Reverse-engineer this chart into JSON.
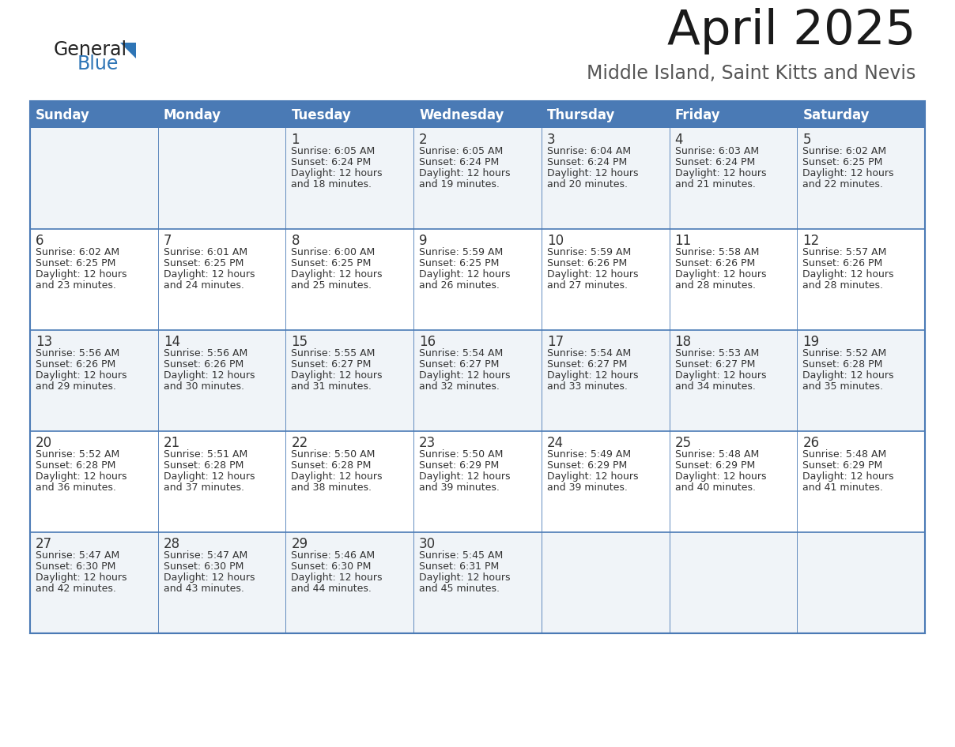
{
  "title": "April 2025",
  "subtitle": "Middle Island, Saint Kitts and Nevis",
  "header_bg_color": "#4a7ab5",
  "header_text_color": "#ffffff",
  "cell_bg_light": "#f0f4f8",
  "cell_bg_white": "#ffffff",
  "border_color": "#4a7ab5",
  "text_color": "#333333",
  "days_of_week": [
    "Sunday",
    "Monday",
    "Tuesday",
    "Wednesday",
    "Thursday",
    "Friday",
    "Saturday"
  ],
  "weeks": [
    [
      {
        "day": "",
        "sunrise": "",
        "sunset": "",
        "daylight": ""
      },
      {
        "day": "",
        "sunrise": "",
        "sunset": "",
        "daylight": ""
      },
      {
        "day": "1",
        "sunrise": "Sunrise: 6:05 AM",
        "sunset": "Sunset: 6:24 PM",
        "daylight": "Daylight: 12 hours\nand 18 minutes."
      },
      {
        "day": "2",
        "sunrise": "Sunrise: 6:05 AM",
        "sunset": "Sunset: 6:24 PM",
        "daylight": "Daylight: 12 hours\nand 19 minutes."
      },
      {
        "day": "3",
        "sunrise": "Sunrise: 6:04 AM",
        "sunset": "Sunset: 6:24 PM",
        "daylight": "Daylight: 12 hours\nand 20 minutes."
      },
      {
        "day": "4",
        "sunrise": "Sunrise: 6:03 AM",
        "sunset": "Sunset: 6:24 PM",
        "daylight": "Daylight: 12 hours\nand 21 minutes."
      },
      {
        "day": "5",
        "sunrise": "Sunrise: 6:02 AM",
        "sunset": "Sunset: 6:25 PM",
        "daylight": "Daylight: 12 hours\nand 22 minutes."
      }
    ],
    [
      {
        "day": "6",
        "sunrise": "Sunrise: 6:02 AM",
        "sunset": "Sunset: 6:25 PM",
        "daylight": "Daylight: 12 hours\nand 23 minutes."
      },
      {
        "day": "7",
        "sunrise": "Sunrise: 6:01 AM",
        "sunset": "Sunset: 6:25 PM",
        "daylight": "Daylight: 12 hours\nand 24 minutes."
      },
      {
        "day": "8",
        "sunrise": "Sunrise: 6:00 AM",
        "sunset": "Sunset: 6:25 PM",
        "daylight": "Daylight: 12 hours\nand 25 minutes."
      },
      {
        "day": "9",
        "sunrise": "Sunrise: 5:59 AM",
        "sunset": "Sunset: 6:25 PM",
        "daylight": "Daylight: 12 hours\nand 26 minutes."
      },
      {
        "day": "10",
        "sunrise": "Sunrise: 5:59 AM",
        "sunset": "Sunset: 6:26 PM",
        "daylight": "Daylight: 12 hours\nand 27 minutes."
      },
      {
        "day": "11",
        "sunrise": "Sunrise: 5:58 AM",
        "sunset": "Sunset: 6:26 PM",
        "daylight": "Daylight: 12 hours\nand 28 minutes."
      },
      {
        "day": "12",
        "sunrise": "Sunrise: 5:57 AM",
        "sunset": "Sunset: 6:26 PM",
        "daylight": "Daylight: 12 hours\nand 28 minutes."
      }
    ],
    [
      {
        "day": "13",
        "sunrise": "Sunrise: 5:56 AM",
        "sunset": "Sunset: 6:26 PM",
        "daylight": "Daylight: 12 hours\nand 29 minutes."
      },
      {
        "day": "14",
        "sunrise": "Sunrise: 5:56 AM",
        "sunset": "Sunset: 6:26 PM",
        "daylight": "Daylight: 12 hours\nand 30 minutes."
      },
      {
        "day": "15",
        "sunrise": "Sunrise: 5:55 AM",
        "sunset": "Sunset: 6:27 PM",
        "daylight": "Daylight: 12 hours\nand 31 minutes."
      },
      {
        "day": "16",
        "sunrise": "Sunrise: 5:54 AM",
        "sunset": "Sunset: 6:27 PM",
        "daylight": "Daylight: 12 hours\nand 32 minutes."
      },
      {
        "day": "17",
        "sunrise": "Sunrise: 5:54 AM",
        "sunset": "Sunset: 6:27 PM",
        "daylight": "Daylight: 12 hours\nand 33 minutes."
      },
      {
        "day": "18",
        "sunrise": "Sunrise: 5:53 AM",
        "sunset": "Sunset: 6:27 PM",
        "daylight": "Daylight: 12 hours\nand 34 minutes."
      },
      {
        "day": "19",
        "sunrise": "Sunrise: 5:52 AM",
        "sunset": "Sunset: 6:28 PM",
        "daylight": "Daylight: 12 hours\nand 35 minutes."
      }
    ],
    [
      {
        "day": "20",
        "sunrise": "Sunrise: 5:52 AM",
        "sunset": "Sunset: 6:28 PM",
        "daylight": "Daylight: 12 hours\nand 36 minutes."
      },
      {
        "day": "21",
        "sunrise": "Sunrise: 5:51 AM",
        "sunset": "Sunset: 6:28 PM",
        "daylight": "Daylight: 12 hours\nand 37 minutes."
      },
      {
        "day": "22",
        "sunrise": "Sunrise: 5:50 AM",
        "sunset": "Sunset: 6:28 PM",
        "daylight": "Daylight: 12 hours\nand 38 minutes."
      },
      {
        "day": "23",
        "sunrise": "Sunrise: 5:50 AM",
        "sunset": "Sunset: 6:29 PM",
        "daylight": "Daylight: 12 hours\nand 39 minutes."
      },
      {
        "day": "24",
        "sunrise": "Sunrise: 5:49 AM",
        "sunset": "Sunset: 6:29 PM",
        "daylight": "Daylight: 12 hours\nand 39 minutes."
      },
      {
        "day": "25",
        "sunrise": "Sunrise: 5:48 AM",
        "sunset": "Sunset: 6:29 PM",
        "daylight": "Daylight: 12 hours\nand 40 minutes."
      },
      {
        "day": "26",
        "sunrise": "Sunrise: 5:48 AM",
        "sunset": "Sunset: 6:29 PM",
        "daylight": "Daylight: 12 hours\nand 41 minutes."
      }
    ],
    [
      {
        "day": "27",
        "sunrise": "Sunrise: 5:47 AM",
        "sunset": "Sunset: 6:30 PM",
        "daylight": "Daylight: 12 hours\nand 42 minutes."
      },
      {
        "day": "28",
        "sunrise": "Sunrise: 5:47 AM",
        "sunset": "Sunset: 6:30 PM",
        "daylight": "Daylight: 12 hours\nand 43 minutes."
      },
      {
        "day": "29",
        "sunrise": "Sunrise: 5:46 AM",
        "sunset": "Sunset: 6:30 PM",
        "daylight": "Daylight: 12 hours\nand 44 minutes."
      },
      {
        "day": "30",
        "sunrise": "Sunrise: 5:45 AM",
        "sunset": "Sunset: 6:31 PM",
        "daylight": "Daylight: 12 hours\nand 45 minutes."
      },
      {
        "day": "",
        "sunrise": "",
        "sunset": "",
        "daylight": ""
      },
      {
        "day": "",
        "sunrise": "",
        "sunset": "",
        "daylight": ""
      },
      {
        "day": "",
        "sunrise": "",
        "sunset": "",
        "daylight": ""
      }
    ]
  ],
  "logo_general_color": "#222222",
  "logo_blue_color": "#2e75b6",
  "logo_triangle_color": "#2e75b6",
  "fig_bg_color": "#ffffff",
  "title_fontsize": 44,
  "subtitle_fontsize": 17,
  "header_fontsize": 12,
  "day_number_fontsize": 12,
  "cell_text_fontsize": 9
}
